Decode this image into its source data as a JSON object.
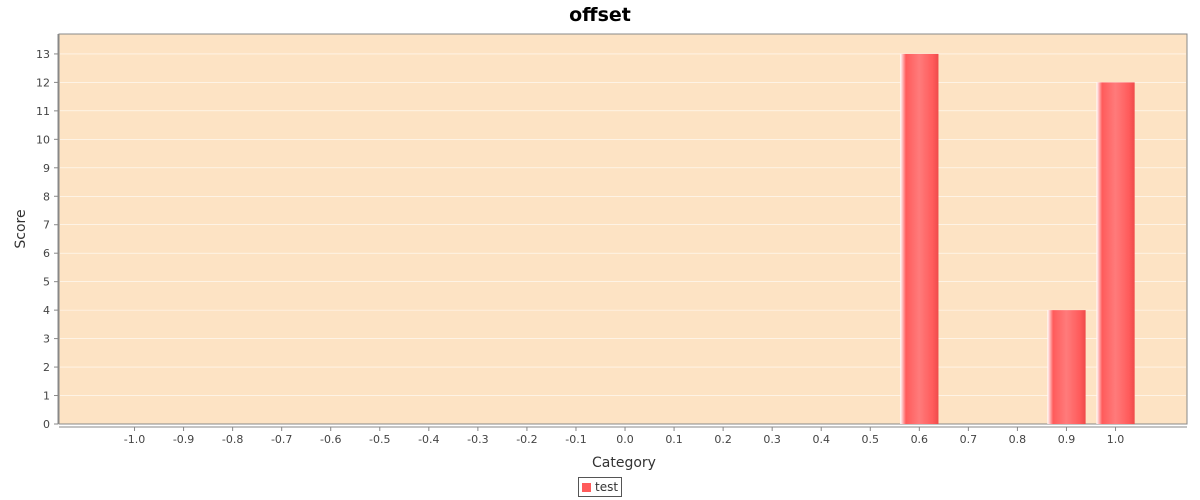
{
  "colors": {
    "plot_background": "#fde3c4",
    "bar_fill": "#ff5b5b",
    "gridline": "#ffffff",
    "axis": "#888888"
  },
  "chart_data": {
    "type": "bar",
    "title": "offset",
    "xlabel": "Category",
    "ylabel": "Score",
    "categories": [
      "-1.0",
      "-0.9",
      "-0.8",
      "-0.7",
      "-0.6",
      "-0.5",
      "-0.4",
      "-0.3",
      "-0.2",
      "-0.1",
      "0.0",
      "0.1",
      "0.2",
      "0.3",
      "0.4",
      "0.5",
      "0.6",
      "0.7",
      "0.8",
      "0.9",
      "1.0"
    ],
    "series": [
      {
        "name": "test",
        "values": [
          0,
          0,
          0,
          0,
          0,
          0,
          0,
          0,
          0,
          0,
          0,
          0,
          0,
          0,
          0,
          0,
          13,
          0,
          0,
          4,
          12
        ]
      }
    ],
    "y_ticks": [
      0,
      1,
      2,
      3,
      4,
      5,
      6,
      7,
      8,
      9,
      10,
      11,
      12,
      13
    ],
    "ylim": [
      0,
      13.7
    ],
    "grid": true,
    "legend_position": "bottom-center"
  }
}
